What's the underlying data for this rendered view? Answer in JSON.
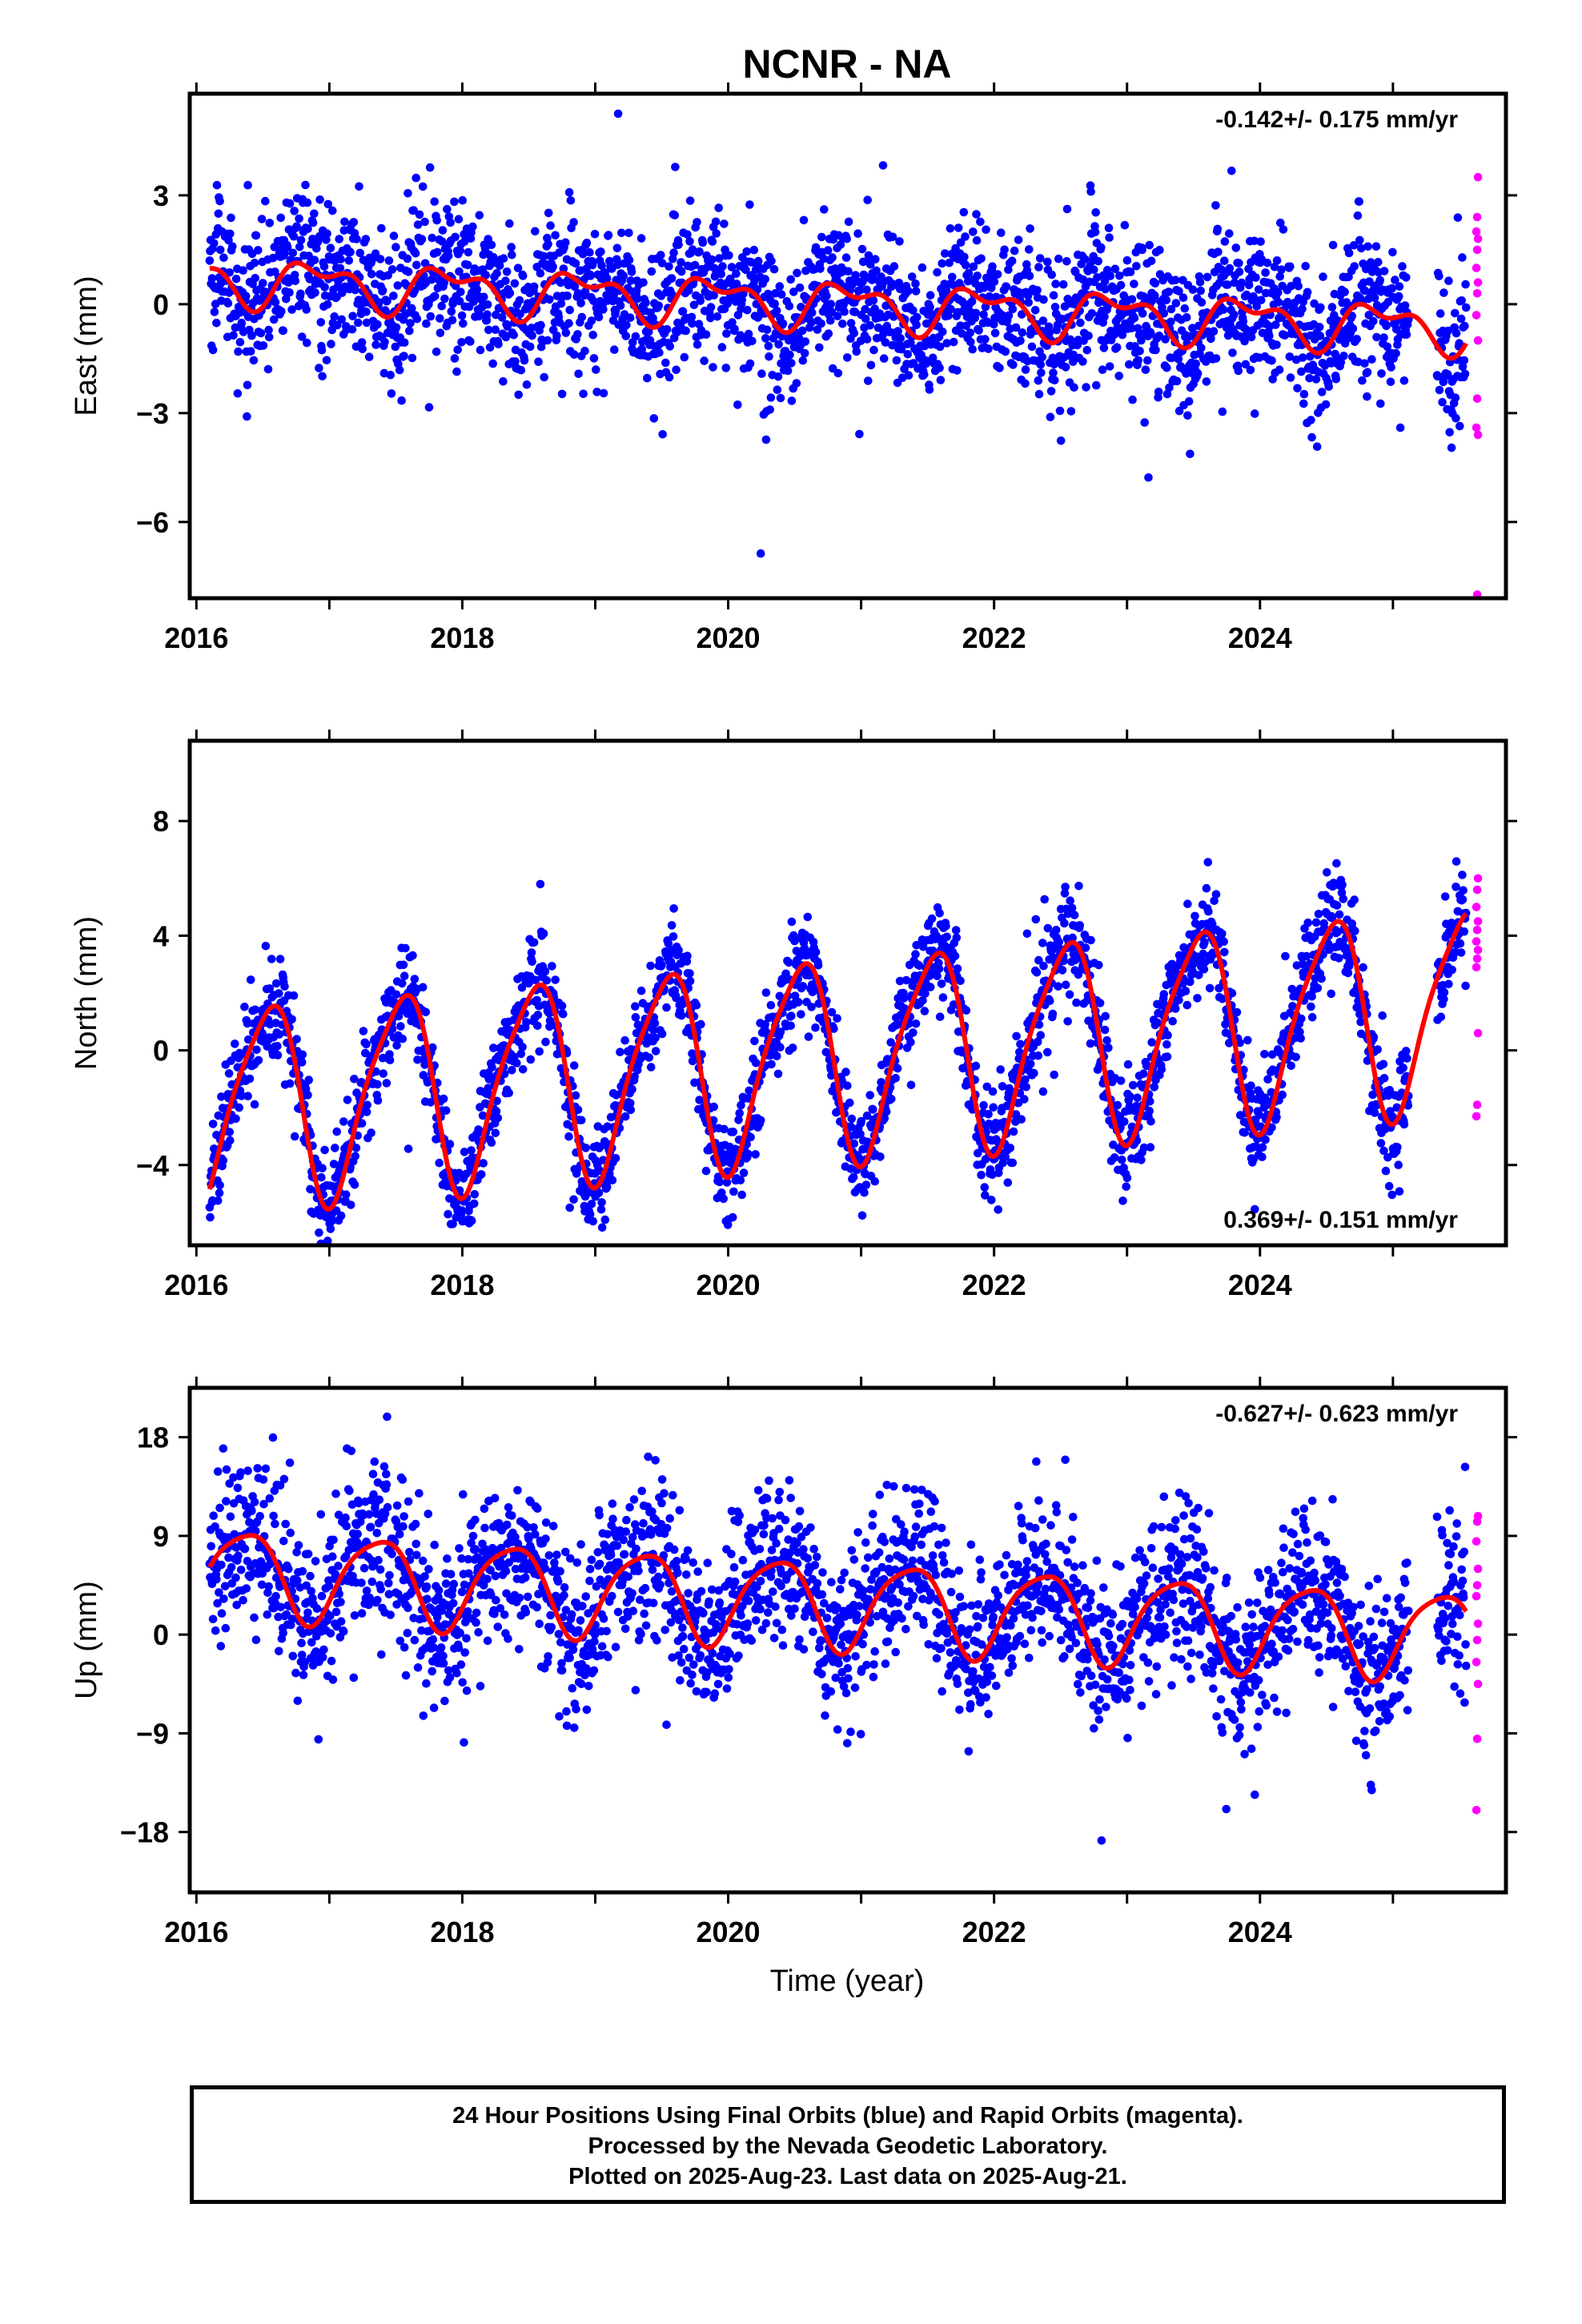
{
  "figure": {
    "title": "NCNR - NA",
    "xlabel": "Time (year)"
  },
  "colors": {
    "final": "#0000ff",
    "rapid": "#ff00ff",
    "model": "#ff0000",
    "axis": "#000000"
  },
  "footer": {
    "line1": "24 Hour Positions Using Final Orbits (blue) and Rapid Orbits (magenta).",
    "line2": "Processed by the Nevada Geodetic Laboratory.",
    "line3": "Plotted on 2025-Aug-23. Last data on 2025-Aug-21."
  },
  "chart_data": [
    {
      "type": "scatter",
      "component": "east",
      "ylabel": "East (mm)",
      "rate_label": "-0.142+/- 0.175 mm/yr",
      "rate_position": "top-right",
      "xlim": [
        2015.95,
        2025.85
      ],
      "ylim": [
        -8.1,
        5.8
      ],
      "xticks": [
        2016,
        2018,
        2020,
        2022,
        2024
      ],
      "xtick_labels": [
        "2016",
        "2018",
        "2020",
        "2022",
        "2024"
      ],
      "yticks": [
        -6,
        -3,
        0,
        3
      ],
      "ytick_labels": [
        "−6",
        "−3",
        "0",
        "3"
      ],
      "data_start": 2016.1,
      "data_end_final": 2025.55,
      "data_end_rapid": 2025.64,
      "model": {
        "offset": 0.0,
        "rate_mm_per_yr": -0.142,
        "annual_cos": 0.45,
        "annual_sin": -0.3,
        "semiannual_cos": -0.25,
        "semiannual_sin": 0.2,
        "scatter_sigma": 1.0,
        "final_point_count": 2600
      },
      "rapid_y_values": [
        3.5,
        2.4,
        2.0,
        1.8,
        1.5,
        1.0,
        0.6,
        0.3,
        -0.3,
        -1.0,
        -2.6,
        -3.4,
        -3.6,
        -8.0
      ]
    },
    {
      "type": "scatter",
      "component": "north",
      "ylabel": "North (mm)",
      "rate_label": "0.369+/- 0.151 mm/yr",
      "rate_position": "bottom-right",
      "xlim": [
        2015.95,
        2025.85
      ],
      "ylim": [
        -6.8,
        10.8
      ],
      "xticks": [
        2016,
        2018,
        2020,
        2022,
        2024
      ],
      "xtick_labels": [
        "2016",
        "2018",
        "2020",
        "2022",
        "2024"
      ],
      "yticks": [
        -4,
        0,
        4,
        8
      ],
      "ytick_labels": [
        "−4",
        "0",
        "4",
        "8"
      ],
      "data_start": 2016.1,
      "data_end_final": 2025.55,
      "data_end_rapid": 2025.64,
      "model": {
        "offset": -0.2,
        "rate_mm_per_yr": 0.369,
        "annual_cos": -3.4,
        "annual_sin": -0.6,
        "semiannual_cos": -0.5,
        "semiannual_sin": 0.4,
        "scatter_sigma": 0.9,
        "final_point_count": 2600
      },
      "rapid_y_values": [
        6.0,
        5.6,
        5.0,
        4.5,
        4.2,
        3.8,
        3.5,
        3.2,
        2.9,
        0.6,
        -1.9,
        -2.3
      ]
    },
    {
      "type": "scatter",
      "component": "up",
      "ylabel": "Up (mm)",
      "rate_label": "-0.627+/- 0.623 mm/yr",
      "rate_position": "top-right",
      "xlim": [
        2015.95,
        2025.85
      ],
      "ylim": [
        -23.5,
        22.5
      ],
      "xticks": [
        2016,
        2018,
        2020,
        2022,
        2024
      ],
      "xtick_labels": [
        "2016",
        "2018",
        "2020",
        "2022",
        "2024"
      ],
      "yticks": [
        -18,
        -9,
        0,
        9,
        18
      ],
      "ytick_labels": [
        "−18",
        "−9",
        "0",
        "9",
        "18"
      ],
      "data_start": 2016.1,
      "data_end_final": 2025.55,
      "data_end_rapid": 2025.64,
      "model": {
        "offset": 2.8,
        "rate_mm_per_yr": -0.627,
        "annual_cos": -2.6,
        "annual_sin": 3.0,
        "semiannual_cos": 0.4,
        "semiannual_sin": 0.6,
        "scatter_sigma": 3.6,
        "final_point_count": 2600
      },
      "rapid_y_values": [
        10.8,
        10.3,
        8.5,
        6.0,
        4.5,
        3.5,
        1.0,
        -0.5,
        -2.5,
        -4.5,
        -9.5,
        -16.0
      ]
    }
  ]
}
